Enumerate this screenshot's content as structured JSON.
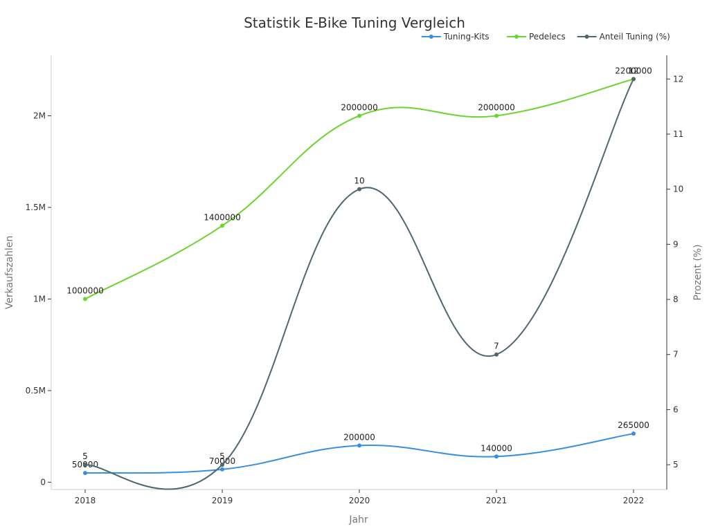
{
  "chart_data": {
    "type": "line",
    "title": "Statistik E-Bike Tuning Vergleich",
    "xlabel": "Jahr",
    "ylabel": "Verkaufszahlen",
    "y2label": "Prozent (%)",
    "categories": [
      "2018",
      "2019",
      "2020",
      "2021",
      "2022"
    ],
    "ylim": [
      -40000,
      2330000
    ],
    "y_ticks": [
      0,
      500000,
      1000000,
      1500000,
      2000000
    ],
    "y_tick_labels": [
      "0",
      "0.5M",
      "1M",
      "1.5M",
      "2M"
    ],
    "y2lim": [
      4.55,
      12.43
    ],
    "y2_ticks": [
      5,
      6,
      7,
      8,
      9,
      10,
      11,
      12
    ],
    "y2_tick_labels": [
      "5",
      "6",
      "7",
      "8",
      "9",
      "10",
      "11",
      "12"
    ],
    "legend_position": "top-right",
    "grid": false,
    "series": [
      {
        "name": "Tuning-Kits",
        "axis": "left",
        "color": "#3a8fdc",
        "values": [
          50000,
          70000,
          200000,
          140000,
          265000
        ],
        "labels": [
          "50000",
          "70000",
          "200000",
          "140000",
          "265000"
        ]
      },
      {
        "name": "Pedelecs",
        "axis": "left",
        "color": "#6bd42f",
        "values": [
          1000000,
          1400000,
          2000000,
          2000000,
          2200000
        ],
        "labels": [
          "1000000",
          "1400000",
          "2000000",
          "2000000",
          "2200000"
        ]
      },
      {
        "name": "Anteil Tuning (%)",
        "axis": "right",
        "color": "#4d6670",
        "values": [
          5,
          5,
          10,
          7,
          12
        ],
        "labels": [
          "5",
          "5",
          "10",
          "7",
          "12"
        ]
      }
    ]
  }
}
